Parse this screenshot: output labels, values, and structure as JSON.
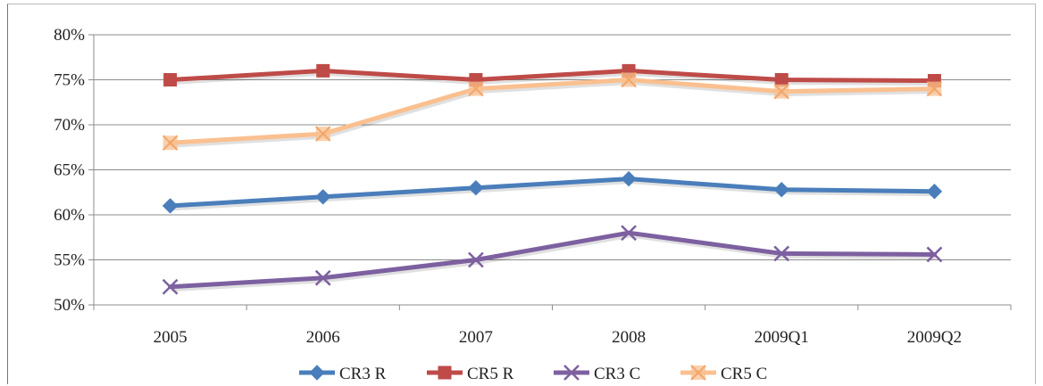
{
  "chart_data": {
    "type": "line",
    "title": "",
    "xlabel": "",
    "ylabel": "",
    "categories": [
      "2005",
      "2006",
      "2007",
      "2008",
      "2009Q1",
      "2009Q2"
    ],
    "ylim": [
      50,
      80
    ],
    "yticks": [
      50,
      55,
      60,
      65,
      70,
      75,
      80
    ],
    "ytick_format": "%",
    "grid": true,
    "legend": "bottom",
    "series": [
      {
        "name": "CR3 R",
        "values": [
          61,
          62,
          63,
          64,
          62.8,
          62.6
        ],
        "color": "#4a7ebb",
        "marker": "diamond"
      },
      {
        "name": "CR5 R",
        "values": [
          75,
          76,
          75,
          76,
          75,
          74.9
        ],
        "color": "#be4b48",
        "marker": "square"
      },
      {
        "name": "CR3 C",
        "values": [
          52,
          53,
          55,
          58,
          55.7,
          55.6
        ],
        "color": "#7d60a0",
        "marker": "x"
      },
      {
        "name": "CR5 C",
        "values": [
          68,
          69,
          74,
          75,
          73.7,
          74
        ],
        "color": "#fac090",
        "marker": "x-square"
      }
    ]
  }
}
